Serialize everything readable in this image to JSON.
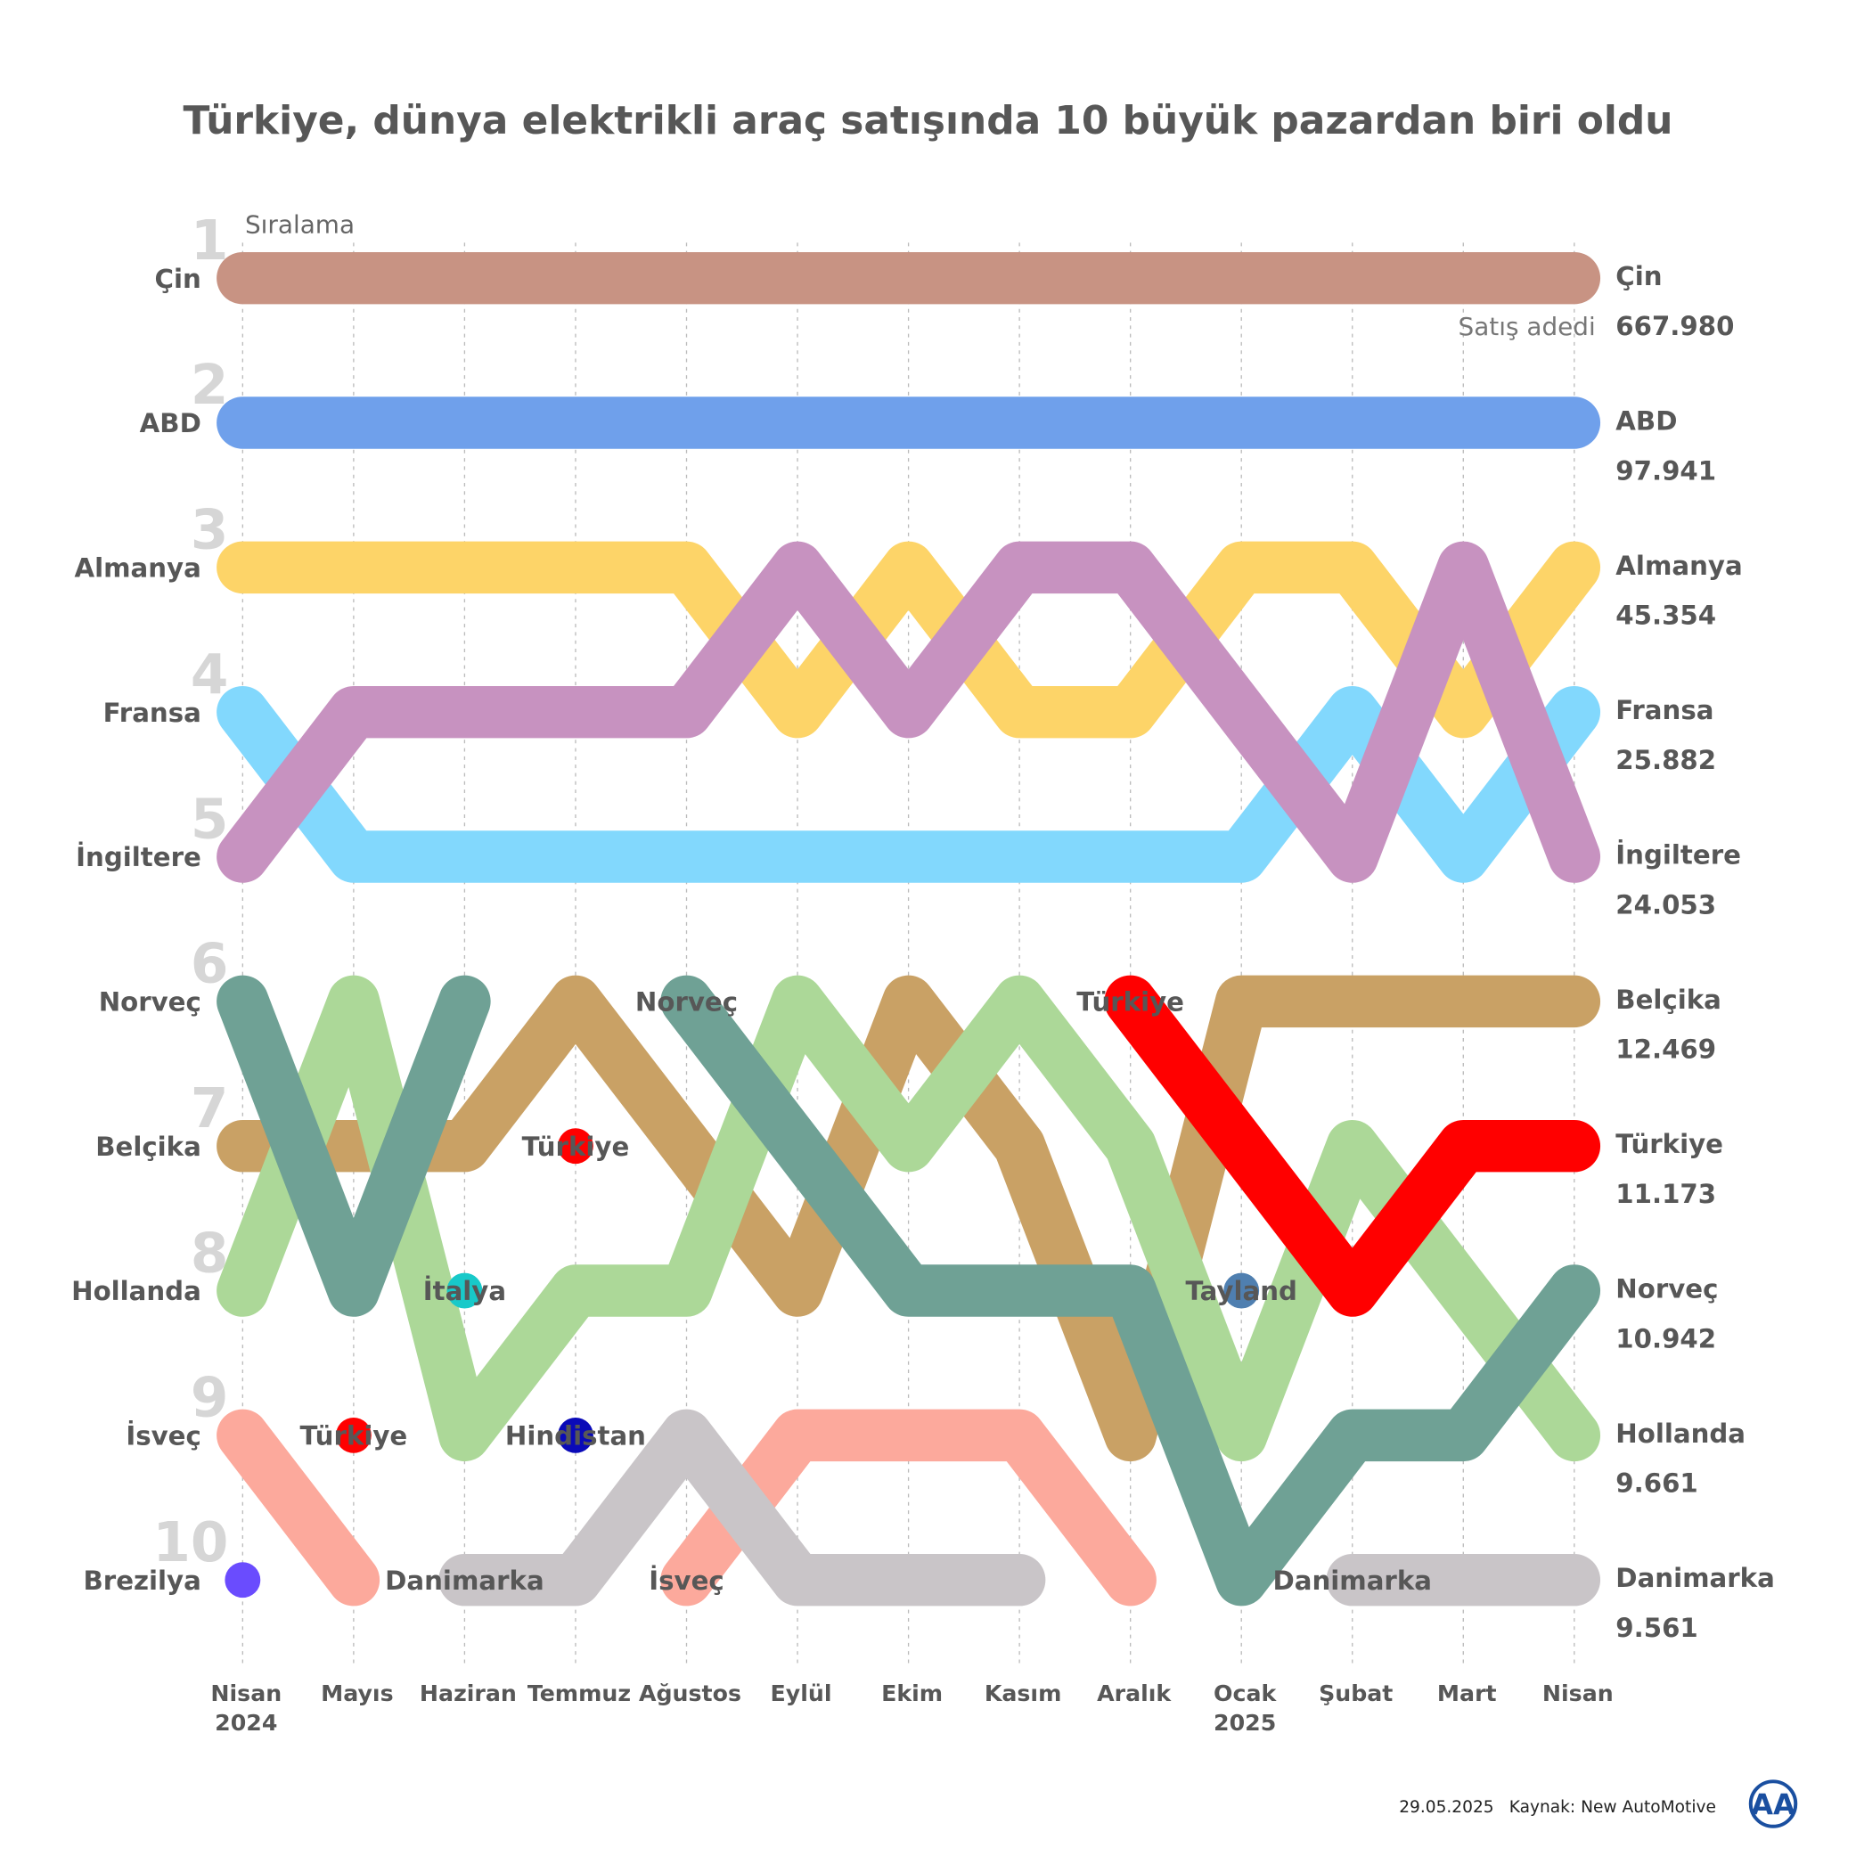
{
  "chart_data": {
    "type": "bump",
    "title": "Türkiye, dünya elektrikli araç satışında 10 büyük pazardan biri oldu",
    "ylabel": "Sıralama",
    "value_label": "Satış adedi",
    "categories": [
      "Nisan 2024",
      "Mayıs",
      "Haziran",
      "Temmuz",
      "Ağustos",
      "Eylül",
      "Ekim",
      "Kasım",
      "Aralık",
      "Ocak 2025",
      "Şubat",
      "Mart",
      "Nisan"
    ],
    "ranks": [
      "1",
      "2",
      "3",
      "4",
      "5",
      "6",
      "7",
      "8",
      "9",
      "10"
    ],
    "ylim": [
      1,
      10
    ],
    "grid": "vertical dashed",
    "series": [
      {
        "name": "Çin",
        "color": "#c89383",
        "ranks": [
          1,
          1,
          1,
          1,
          1,
          1,
          1,
          1,
          1,
          1,
          1,
          1,
          1
        ],
        "final_value": "667.980"
      },
      {
        "name": "ABD",
        "color": "#6fa0eb",
        "ranks": [
          2,
          2,
          2,
          2,
          2,
          2,
          2,
          2,
          2,
          2,
          2,
          2,
          2
        ],
        "final_value": "97.941"
      },
      {
        "name": "Almanya",
        "color": "#fdd468",
        "ranks": [
          3,
          3,
          3,
          3,
          3,
          4,
          3,
          4,
          4,
          3,
          3,
          4,
          3
        ],
        "final_value": "45.354"
      },
      {
        "name": "Fransa",
        "color": "#82d8fd",
        "ranks": [
          4,
          5,
          5,
          5,
          5,
          5,
          5,
          5,
          5,
          5,
          4,
          5,
          4
        ],
        "final_value": "25.882"
      },
      {
        "name": "İngiltere",
        "color": "#c792c0",
        "ranks": [
          5,
          4,
          4,
          4,
          4,
          3,
          4,
          3,
          3,
          4,
          5,
          3,
          5
        ],
        "final_value": "24.053"
      },
      {
        "name": "Belçika",
        "color": "#c9a165",
        "ranks": [
          7,
          7,
          7,
          6,
          7,
          8,
          6,
          7,
          9,
          6,
          6,
          6,
          6
        ],
        "final_value": "12.469"
      },
      {
        "name": "Hollanda",
        "color": "#acd898",
        "ranks": [
          8,
          6,
          9,
          8,
          8,
          6,
          7,
          6,
          7,
          9,
          7,
          8,
          9
        ],
        "final_value": "9.661"
      },
      {
        "name": "Norveç",
        "color": "#6fa195",
        "ranks": [
          6,
          8,
          6,
          null,
          6,
          7,
          8,
          8,
          8,
          10,
          9,
          9,
          8
        ],
        "final_value": "10.942"
      },
      {
        "name": "İsveç",
        "color": "#fca99c",
        "ranks": [
          9,
          10,
          null,
          null,
          10,
          9,
          9,
          9,
          10,
          null,
          null,
          null,
          null
        ]
      },
      {
        "name": "Danimarka",
        "color": "#c9c5c8",
        "ranks": [
          null,
          null,
          10,
          10,
          9,
          10,
          10,
          10,
          null,
          null,
          10,
          10,
          10
        ],
        "final_value": "9.561"
      },
      {
        "name": "Türkiye",
        "color": "#ff0000",
        "ranks": [
          null,
          9,
          null,
          7,
          null,
          null,
          null,
          null,
          6,
          7,
          8,
          7,
          7
        ],
        "final_value": "11.173"
      },
      {
        "name": "Brezilya",
        "color": "#6a4cfe",
        "ranks": [
          10,
          null,
          null,
          null,
          null,
          null,
          null,
          null,
          null,
          null,
          null,
          null,
          null
        ]
      },
      {
        "name": "İtalya",
        "color": "#18c9c9",
        "ranks": [
          null,
          null,
          8,
          null,
          null,
          null,
          null,
          null,
          null,
          null,
          null,
          null,
          null
        ]
      },
      {
        "name": "Hindistan",
        "color": "#0a0ab8",
        "ranks": [
          null,
          null,
          null,
          9,
          null,
          null,
          null,
          null,
          null,
          null,
          null,
          null,
          null
        ]
      },
      {
        "name": "Tayland",
        "color": "#4f7fb0",
        "ranks": [
          null,
          null,
          null,
          null,
          null,
          null,
          null,
          null,
          null,
          8,
          null,
          null,
          null
        ]
      }
    ]
  },
  "footer": {
    "date": "29.05.2025",
    "source": "Kaynak: New AutoMotive",
    "logo": "AA"
  }
}
